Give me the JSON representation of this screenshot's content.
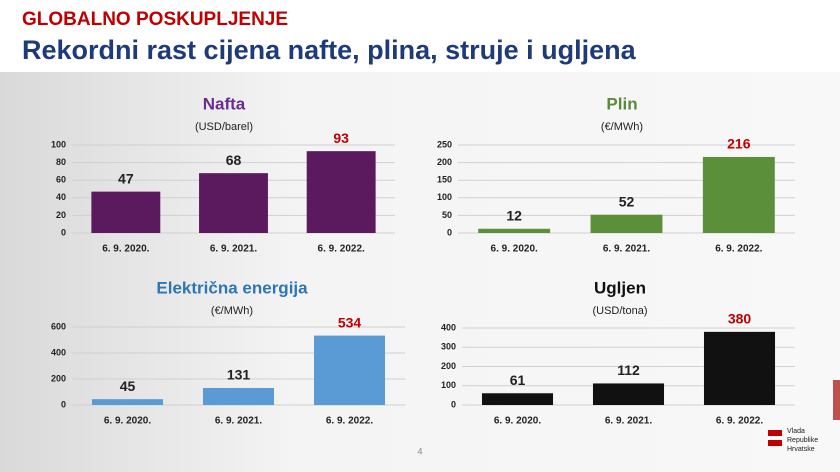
{
  "header": {
    "kicker": "GLOBALNO POSKUPLJENJE",
    "title": "Rekordni rast cijena nafte, plina, struje i ugljena"
  },
  "footer": {
    "page": "4",
    "logo": [
      "Vlada",
      "Republike",
      "Hrvatske"
    ]
  },
  "chart_data": [
    {
      "type": "bar",
      "title": "Nafta",
      "subtitle": "(USD/barel)",
      "title_color": "#6b2c91",
      "categories": [
        "6. 9. 2020.",
        "6. 9. 2021.",
        "6. 9. 2022."
      ],
      "values": [
        47,
        68,
        93
      ],
      "color": "#5b1a5e",
      "value_label_colors": [
        "#222222",
        "#222222",
        "#c00000"
      ],
      "ylim": [
        0,
        100
      ],
      "yticks": [
        0,
        20,
        40,
        60,
        80,
        100
      ],
      "grid": true
    },
    {
      "type": "bar",
      "title": "Plin",
      "subtitle": "(€/MWh)",
      "title_color": "#5a8a3a",
      "categories": [
        "6. 9. 2020.",
        "6. 9. 2021.",
        "6. 9. 2022."
      ],
      "values": [
        12,
        52,
        216
      ],
      "color": "#5b8f3a",
      "value_label_colors": [
        "#222222",
        "#222222",
        "#c00000"
      ],
      "ylim": [
        0,
        250
      ],
      "yticks": [
        0,
        50,
        100,
        150,
        200,
        250
      ],
      "grid": true
    },
    {
      "type": "bar",
      "title": "Električna energija",
      "subtitle": "(€/MWh)",
      "title_color": "#2e75b6",
      "categories": [
        "6. 9. 2020.",
        "6. 9. 2021.",
        "6. 9. 2022."
      ],
      "values": [
        45,
        131,
        534
      ],
      "color": "#5b9bd5",
      "value_label_colors": [
        "#222222",
        "#222222",
        "#c00000"
      ],
      "ylim": [
        0,
        600
      ],
      "yticks": [
        0,
        200,
        400,
        600
      ],
      "grid": true
    },
    {
      "type": "bar",
      "title": "Ugljen",
      "subtitle": "(USD/tona)",
      "title_color": "#111111",
      "categories": [
        "6. 9. 2020.",
        "6. 9. 2021.",
        "6. 9. 2022."
      ],
      "values": [
        61,
        112,
        380
      ],
      "color": "#111111",
      "value_label_colors": [
        "#222222",
        "#222222",
        "#c00000"
      ],
      "ylim": [
        0,
        400
      ],
      "yticks": [
        0,
        100,
        200,
        300,
        400
      ],
      "grid": true
    }
  ]
}
